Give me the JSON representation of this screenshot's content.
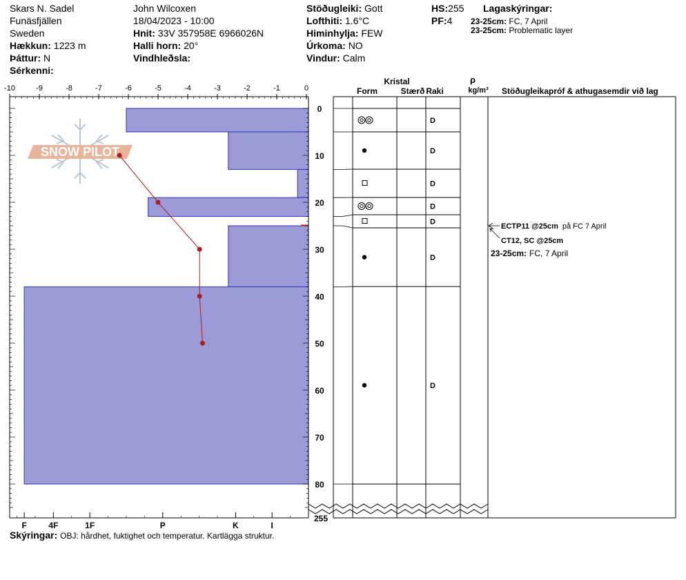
{
  "header": {
    "location": "Skars N. Sadel",
    "region": "Funäsfjällen",
    "country": "Sweden",
    "elevation_label": "Hækkun:",
    "elevation_value": "1223 m",
    "aspect_label": "Þáttur:",
    "aspect_value": "N",
    "features_label": "Sérkenni:",
    "observer": "John Wilcoxen",
    "datetime": "18/04/2023 - 10:00",
    "coords_label": "Hnit:",
    "coords_value": "33V 357958E 6966026N",
    "slope_label": "Halli horn:",
    "slope_value": "20°",
    "wind_loading_label": "Vindhleðsla:",
    "stability_label": "Stöðugleiki:",
    "stability_value": "Gott",
    "air_temp_label": "Lofthiti:",
    "air_temp_value": "1.6°C",
    "sky_label": "Himinhylja:",
    "sky_value": "FEW",
    "precip_label": "Úrkoma:",
    "precip_value": "NO",
    "wind_label": "Vindur:",
    "wind_value": "Calm",
    "hs_label": "HS:",
    "hs_value": "255",
    "pf_label": "PF:",
    "pf_value": "4",
    "layer_notes_label": "Lagaskýringar:",
    "layer_notes": [
      {
        "depth": "23-25cm:",
        "text": "FC, 7 April"
      },
      {
        "depth": "23-25cm:",
        "text": "Problematic layer"
      }
    ]
  },
  "logo_text": "SNOW PILOT",
  "columns": {
    "crystal": "Kristal",
    "form": "Form",
    "size": "Stærð",
    "moisture": "Raki",
    "density_symbol": "ρ",
    "density_unit": "kg/m³",
    "tests": "Stöðugleikapróf & athugasemdir við lag"
  },
  "legend_label": "Skýringar:",
  "legend_text": "OBJ: hårdhet, fuktighet och temperatur. Kartlägga struktur.",
  "stability_tests": [
    {
      "label": "ECTP11 @25cm",
      "note": "på FC 7 April"
    },
    {
      "label": "CT12, SC @25cm",
      "note": ""
    }
  ],
  "layer_comment": {
    "depth": "23-25cm:",
    "text": "FC, 7 April"
  },
  "chart_data": {
    "type": "bar",
    "orientation": "horizontal",
    "title": "",
    "temperature_axis": {
      "ticks": [
        -10,
        -9,
        -8,
        -7,
        -6,
        -5,
        -4,
        -3,
        -2,
        -1,
        0
      ],
      "range": [
        -10,
        0
      ]
    },
    "depth_axis": {
      "ticks": [
        0,
        10,
        20,
        30,
        40,
        50,
        60,
        70,
        80
      ],
      "range": [
        0,
        80
      ],
      "break_label": "255"
    },
    "hardness_axis": {
      "ticks": [
        "I",
        "K",
        "P",
        "1F",
        "4F",
        "F"
      ],
      "positions": [
        1,
        2,
        4,
        6,
        7,
        7.8
      ],
      "max": 8.2
    },
    "hardness_layers": [
      {
        "top": 0,
        "bottom": 5,
        "hardness": 5
      },
      {
        "top": 5,
        "bottom": 13,
        "hardness": 2.2
      },
      {
        "top": 13,
        "bottom": 19,
        "hardness": 0.3
      },
      {
        "top": 19,
        "bottom": 23,
        "hardness": 4.4
      },
      {
        "top": 23,
        "bottom": 25,
        "hardness": 0
      },
      {
        "top": 25,
        "bottom": 38,
        "hardness": 2.2
      },
      {
        "top": 38,
        "bottom": 80,
        "hardness": 7.8
      }
    ],
    "weak_layer_depth": 25,
    "temperature_profile": [
      {
        "depth": 10,
        "temp": -6.3
      },
      {
        "depth": 20,
        "temp": -5.0
      },
      {
        "depth": 30,
        "temp": -3.6
      },
      {
        "depth": 40,
        "temp": -3.6
      },
      {
        "depth": 50,
        "temp": -3.5
      }
    ],
    "crystal_layers": [
      {
        "top": 0,
        "bottom": 5,
        "form": "decomposing-fragments",
        "moisture": "D"
      },
      {
        "top": 5,
        "bottom": 13,
        "form": "rounded-grains",
        "moisture": "D"
      },
      {
        "top": 13,
        "bottom": 19,
        "form": "faceted-crystals",
        "moisture": "D"
      },
      {
        "top": 19,
        "bottom": 23,
        "form": "decomposing-fragments",
        "moisture": "D"
      },
      {
        "top": 23,
        "bottom": 25,
        "form": "faceted-crystals",
        "moisture": "D"
      },
      {
        "top": 25,
        "bottom": 38,
        "form": "rounded-grains",
        "moisture": "D"
      },
      {
        "top": 38,
        "bottom": 80,
        "form": "rounded-grains",
        "moisture": "D"
      }
    ]
  }
}
